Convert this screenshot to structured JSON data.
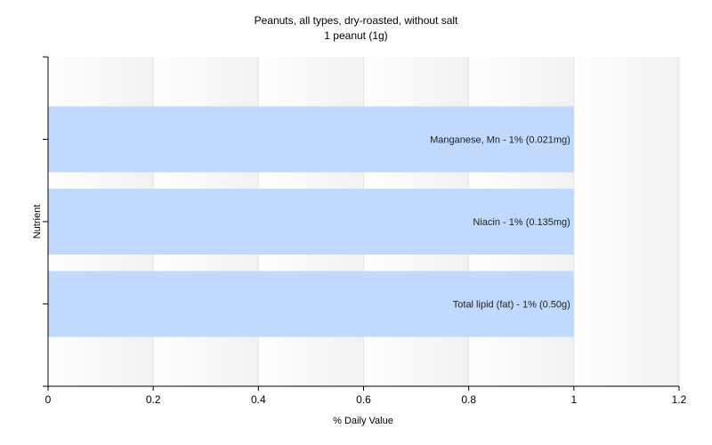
{
  "chart_data": {
    "type": "bar",
    "orientation": "horizontal",
    "title": "Peanuts, all types, dry-roasted, without salt",
    "subtitle": "1 peanut (1g)",
    "xlabel": "% Daily Value",
    "ylabel": "Nutrient",
    "xlim": [
      0,
      1.2
    ],
    "xticks": [
      0,
      0.2,
      0.4,
      0.6,
      0.8,
      1,
      1.2
    ],
    "xtick_labels": [
      "0",
      "0.2",
      "0.4",
      "0.6",
      "0.8",
      "1",
      "1.2"
    ],
    "grid": true,
    "categories": [
      "Manganese, Mn",
      "Niacin",
      "Total lipid (fat)"
    ],
    "values": [
      1,
      1,
      1
    ],
    "data_labels": [
      "Manganese, Mn - 1% (0.021mg)",
      "Niacin - 1% (0.135mg)",
      "Total lipid (fat) - 1% (0.50g)"
    ],
    "bar_color": "#c0d9fc",
    "gridline_color": "#e6e6e6",
    "axis_color": "#000000"
  }
}
